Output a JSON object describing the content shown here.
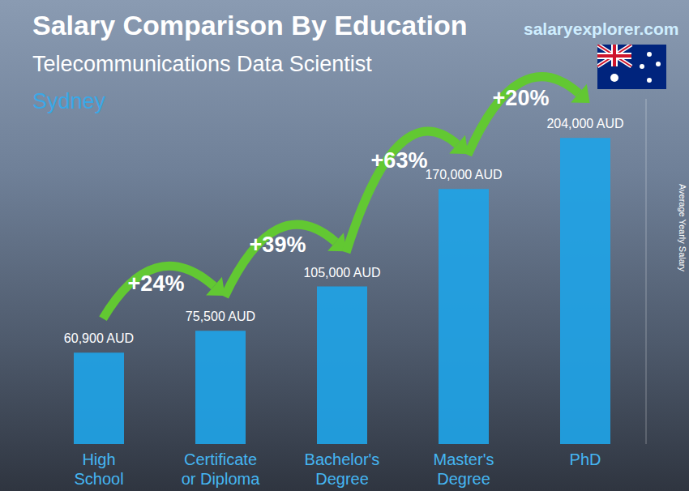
{
  "chart_data": {
    "type": "bar",
    "title": "Salary Comparison By Education",
    "subtitle": "Telecommunications Data Scientist",
    "location": "Sydney",
    "source": "salaryexplorer.com",
    "ylabel": "Average Yearly Salary",
    "categories": [
      "High School",
      "Certificate or Diploma",
      "Bachelor's Degree",
      "Master's Degree",
      "PhD"
    ],
    "values": [
      60900,
      75500,
      105000,
      170000,
      204000
    ],
    "value_labels": [
      "60,900 AUD",
      "75,500 AUD",
      "105,000 AUD",
      "170,000 AUD",
      "204,000 AUD"
    ],
    "annotations": [
      "+24%",
      "+39%",
      "+63%",
      "+20%"
    ],
    "color": "#1fa3e6",
    "ylim": [
      0,
      230000
    ],
    "data_labels": true,
    "tick_labels": "x",
    "grid": false
  }
}
